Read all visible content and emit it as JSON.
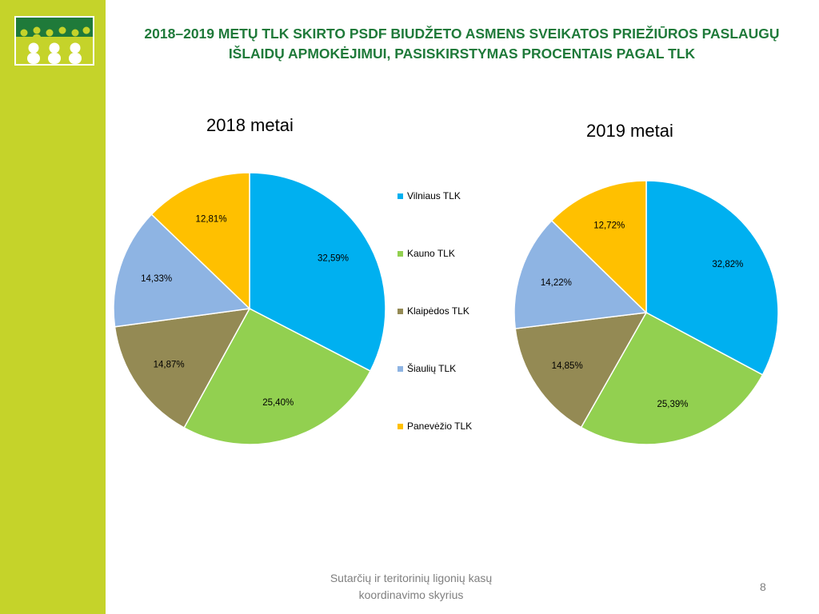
{
  "slide": {
    "title_line1": "2018–2019 METŲ TLK SKIRTO PSDF BIUDŽETO ASMENS SVEIKATOS PRIEŽIŪROS PASLAUGŲ",
    "title_line2": "IŠLAIDŲ APMOKĖJIMUI, PASISKIRSTYMAS PROCENTAIS PAGAL TLK",
    "footer_line1": "Sutarčių ir teritorinių ligonių kasų",
    "footer_line2": "koordinavimo skyrius",
    "page_number": "8",
    "sidebar_color": "#c5d32a",
    "title_color": "#1f7a3a"
  },
  "legend": [
    {
      "label": "Vilniaus TLK",
      "color": "#00b0f0"
    },
    {
      "label": "Kauno TLK",
      "color": "#92d050"
    },
    {
      "label": "Klaipėdos TLK",
      "color": "#948a54"
    },
    {
      "label": "Šiaulių TLK",
      "color": "#8eb4e3"
    },
    {
      "label": "Panevėžio TLK",
      "color": "#ffc000"
    }
  ],
  "chart_data": [
    {
      "type": "pie",
      "title": "2018 metai",
      "categories": [
        "Vilniaus TLK",
        "Kauno TLK",
        "Klaipėdos TLK",
        "Šiaulių TLK",
        "Panevėžio TLK"
      ],
      "values": [
        32.59,
        25.4,
        14.87,
        14.33,
        12.81
      ],
      "labels": [
        "32,59%",
        "25,40%",
        "14,87%",
        "14,33%",
        "12,81%"
      ],
      "colors": [
        "#00b0f0",
        "#92d050",
        "#948a54",
        "#8eb4e3",
        "#ffc000"
      ],
      "legend": "right"
    },
    {
      "type": "pie",
      "title": "2019 metai",
      "categories": [
        "Vilniaus TLK",
        "Kauno TLK",
        "Klaipėdos TLK",
        "Šiaulių TLK",
        "Panevėžio TLK"
      ],
      "values": [
        32.82,
        25.39,
        14.85,
        14.22,
        12.72
      ],
      "labels": [
        "32,82%",
        "25,39%",
        "14,85%",
        "14,22%",
        "12,72%"
      ],
      "colors": [
        "#00b0f0",
        "#92d050",
        "#948a54",
        "#8eb4e3",
        "#ffc000"
      ]
    }
  ]
}
